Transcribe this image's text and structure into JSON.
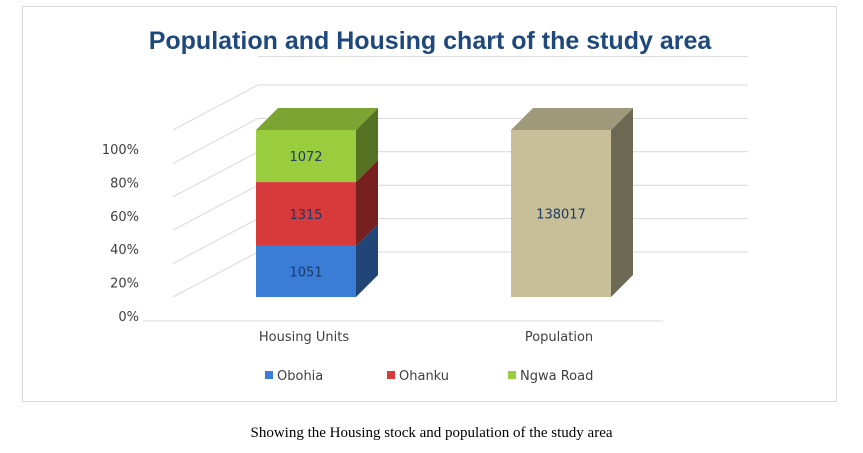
{
  "chart_data": {
    "type": "bar",
    "stacked": "100%",
    "three_d": true,
    "title": "Population and Housing chart of the study area",
    "categories": [
      "Housing Units",
      "Population"
    ],
    "series": [
      {
        "name": "Obohia",
        "values": [
          1051,
          null
        ],
        "color": "#3a7dd6"
      },
      {
        "name": "Ohanku",
        "values": [
          1315,
          null
        ],
        "color": "#d63a3a"
      },
      {
        "name": "Ngwa Road",
        "values": [
          1072,
          null
        ],
        "color": "#9acd3e"
      },
      {
        "name": "",
        "values": [
          null,
          138017
        ],
        "color": "#c6bf98"
      }
    ],
    "data_labels": [
      [
        "1051",
        "1315",
        "1072"
      ],
      [
        "138017"
      ]
    ],
    "y_ticks": [
      "0%",
      "20%",
      "40%",
      "60%",
      "80%",
      "100%"
    ],
    "ylim": [
      0,
      100
    ],
    "grid": true,
    "legend_position": "bottom",
    "legend": [
      "Obohia",
      "Ohanku",
      "Ngwa Road"
    ]
  },
  "caption": "Showing the Housing stock and population of the study area"
}
